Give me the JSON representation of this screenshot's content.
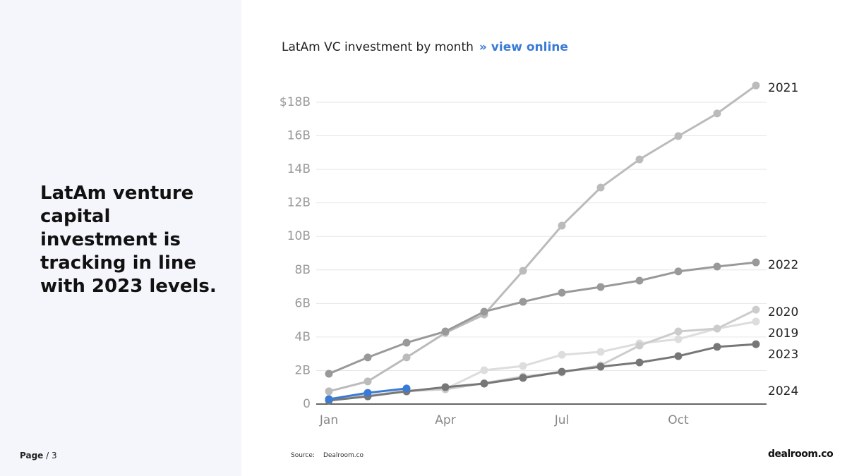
{
  "chart_data": {
    "type": "line",
    "heading": "LatAm venture capital investment is tracking in line with 2023 levels.",
    "title": "LatAm VC investment by month",
    "link": "» view online",
    "page_label": "Page",
    "page_number": "/ 3",
    "source_label": "Source:",
    "source": "Dealroom.co",
    "logo": "dealroom.co",
    "categories": [
      "Jan",
      null,
      null,
      "Apr",
      null,
      null,
      "Jul",
      null,
      null,
      "Oct",
      null,
      null
    ],
    "ylim": [
      0,
      19.5
    ],
    "yticks": [
      0,
      {
        "value": 2,
        "label": "2B"
      },
      {
        "value": 4,
        "label": "4B"
      },
      {
        "value": 6,
        "label": "6B"
      },
      {
        "value": 8,
        "label": "8B"
      },
      {
        "value": 10,
        "label": "10B"
      },
      {
        "value": 12,
        "label": "12B"
      },
      {
        "value": 14,
        "label": "14B"
      },
      {
        "value": 16,
        "label": "16B"
      },
      {
        "value": 18,
        "label": "$18B"
      }
    ],
    "grid": true,
    "series": [
      {
        "name": "2019",
        "color": "#dddddd",
        "values": [
          0.3,
          0.5,
          0.75,
          0.9,
          2.02,
          2.27,
          2.94,
          3.11,
          3.62,
          3.87,
          4.5,
          4.92
        ]
      },
      {
        "name": "2020",
        "color": "#cccccc",
        "values": [
          0.3,
          0.5,
          0.8,
          0.88,
          1.25,
          1.64,
          1.89,
          2.31,
          3.49,
          4.33,
          4.5,
          5.63
        ]
      },
      {
        "name": "2021",
        "color": "#bbbbbb",
        "values": [
          0.76,
          1.35,
          2.78,
          4.25,
          5.34,
          7.95,
          10.64,
          12.91,
          14.59,
          15.98,
          17.33,
          19.0
        ]
      },
      {
        "name": "2022",
        "color": "#999999",
        "values": [
          1.81,
          2.78,
          3.66,
          4.33,
          5.51,
          6.1,
          6.64,
          6.98,
          7.36,
          7.91,
          8.2,
          8.45
        ]
      },
      {
        "name": "2023",
        "color": "#777777",
        "values": [
          0.21,
          0.46,
          0.76,
          1.01,
          1.22,
          1.56,
          1.93,
          2.23,
          2.48,
          2.86,
          3.41,
          3.57
        ]
      },
      {
        "name": "2024",
        "color": "#3a7bd5",
        "values": [
          0.29,
          0.67,
          0.93,
          null,
          null,
          null,
          null,
          null,
          null,
          null,
          null,
          null
        ]
      }
    ]
  }
}
